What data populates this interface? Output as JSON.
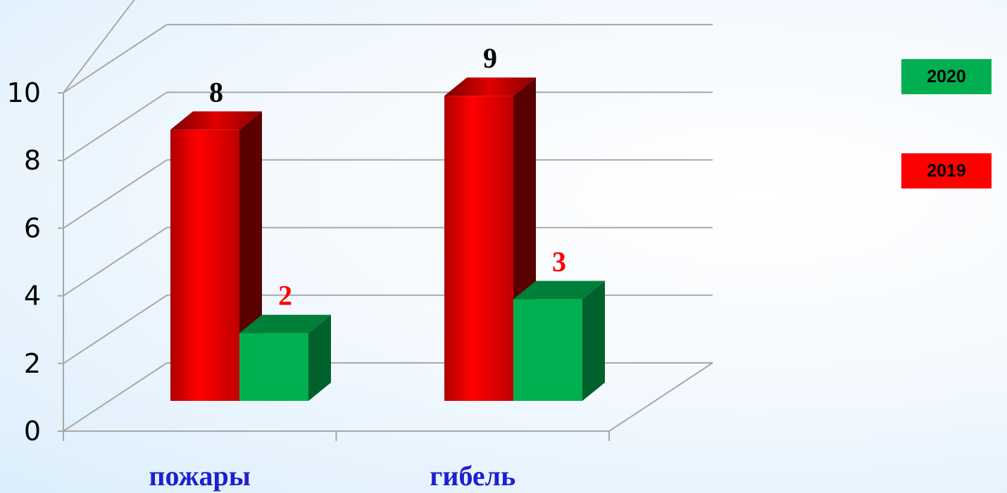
{
  "chart_data": {
    "type": "bar",
    "categories": [
      "пожары",
      "гибель"
    ],
    "series": [
      {
        "name": "2019",
        "values": [
          8,
          9
        ],
        "color": "#ff0000",
        "label_color": "#000000"
      },
      {
        "name": "2020",
        "values": [
          2,
          3
        ],
        "color": "#00b050",
        "label_color": "#ff0000"
      }
    ],
    "ylim": [
      0,
      10
    ],
    "yticks": [
      "0",
      "2",
      "4",
      "6",
      "8",
      "10"
    ],
    "grid": true,
    "legend_position": "right",
    "legend_order": [
      "2020",
      "2019"
    ]
  }
}
